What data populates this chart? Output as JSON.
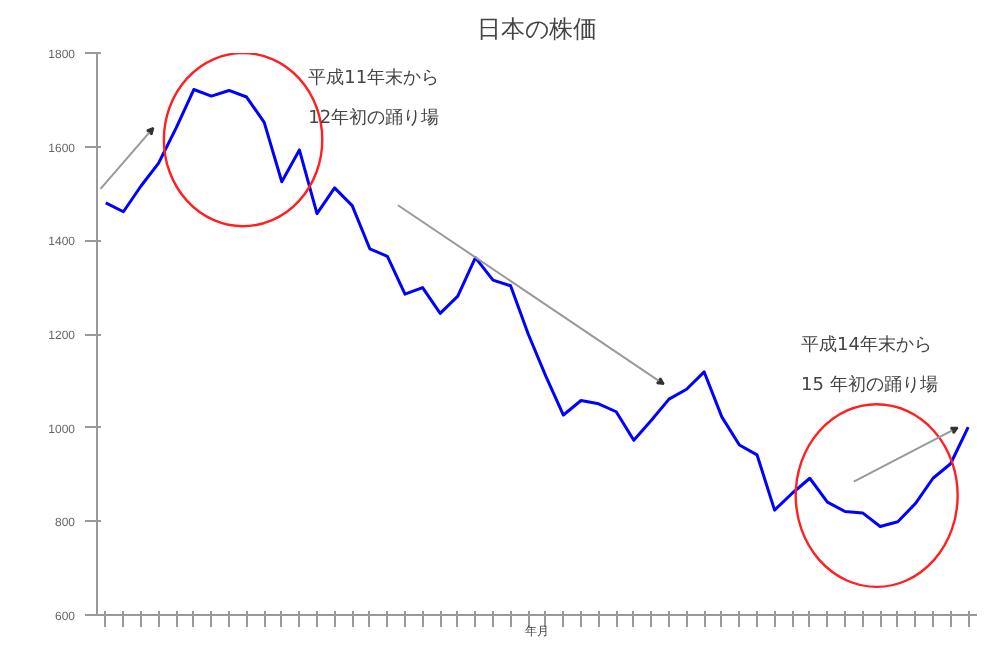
{
  "chart_data": {
    "type": "line",
    "title": "日本の株価",
    "xlabel": "年月",
    "categories": [
      null,
      null,
      null,
      null,
      null,
      null,
      null,
      null,
      null,
      null,
      null,
      null,
      null,
      null,
      null,
      null,
      null,
      null,
      null,
      null,
      null,
      null,
      null,
      null,
      null,
      null,
      null,
      null,
      null,
      null,
      null,
      null,
      null,
      null,
      null,
      null,
      null,
      null,
      null,
      null,
      null,
      null,
      null,
      null,
      null,
      null,
      null,
      null,
      null,
      null
    ],
    "series": [
      {
        "color": "#0000ff",
        "values": [
          1480,
          1461,
          1516,
          1565,
          1640,
          1722,
          1708,
          1720,
          1706,
          1652,
          1525,
          1593,
          1457,
          1512,
          1474,
          1382,
          1366,
          1285,
          1299,
          1244,
          1281,
          1363,
          1315,
          1303,
          1200,
          1110,
          1027,
          1058,
          1051,
          1034,
          973,
          1016,
          1061,
          1082,
          1119,
          1023,
          963,
          942,
          824,
          860,
          892,
          841,
          821,
          818,
          789,
          799,
          838,
          892,
          923,
          1001
        ]
      }
    ],
    "ylim": [
      600,
      1800
    ],
    "yticks": [
      600,
      800,
      1000,
      1200,
      1400,
      1600,
      1800
    ],
    "grid": false,
    "marker": "none",
    "line_style": "solid",
    "annotations": [
      "平成11年末から\n12年初の踊り場",
      "平成14年末から\n15 年初の踊り場"
    ]
  }
}
